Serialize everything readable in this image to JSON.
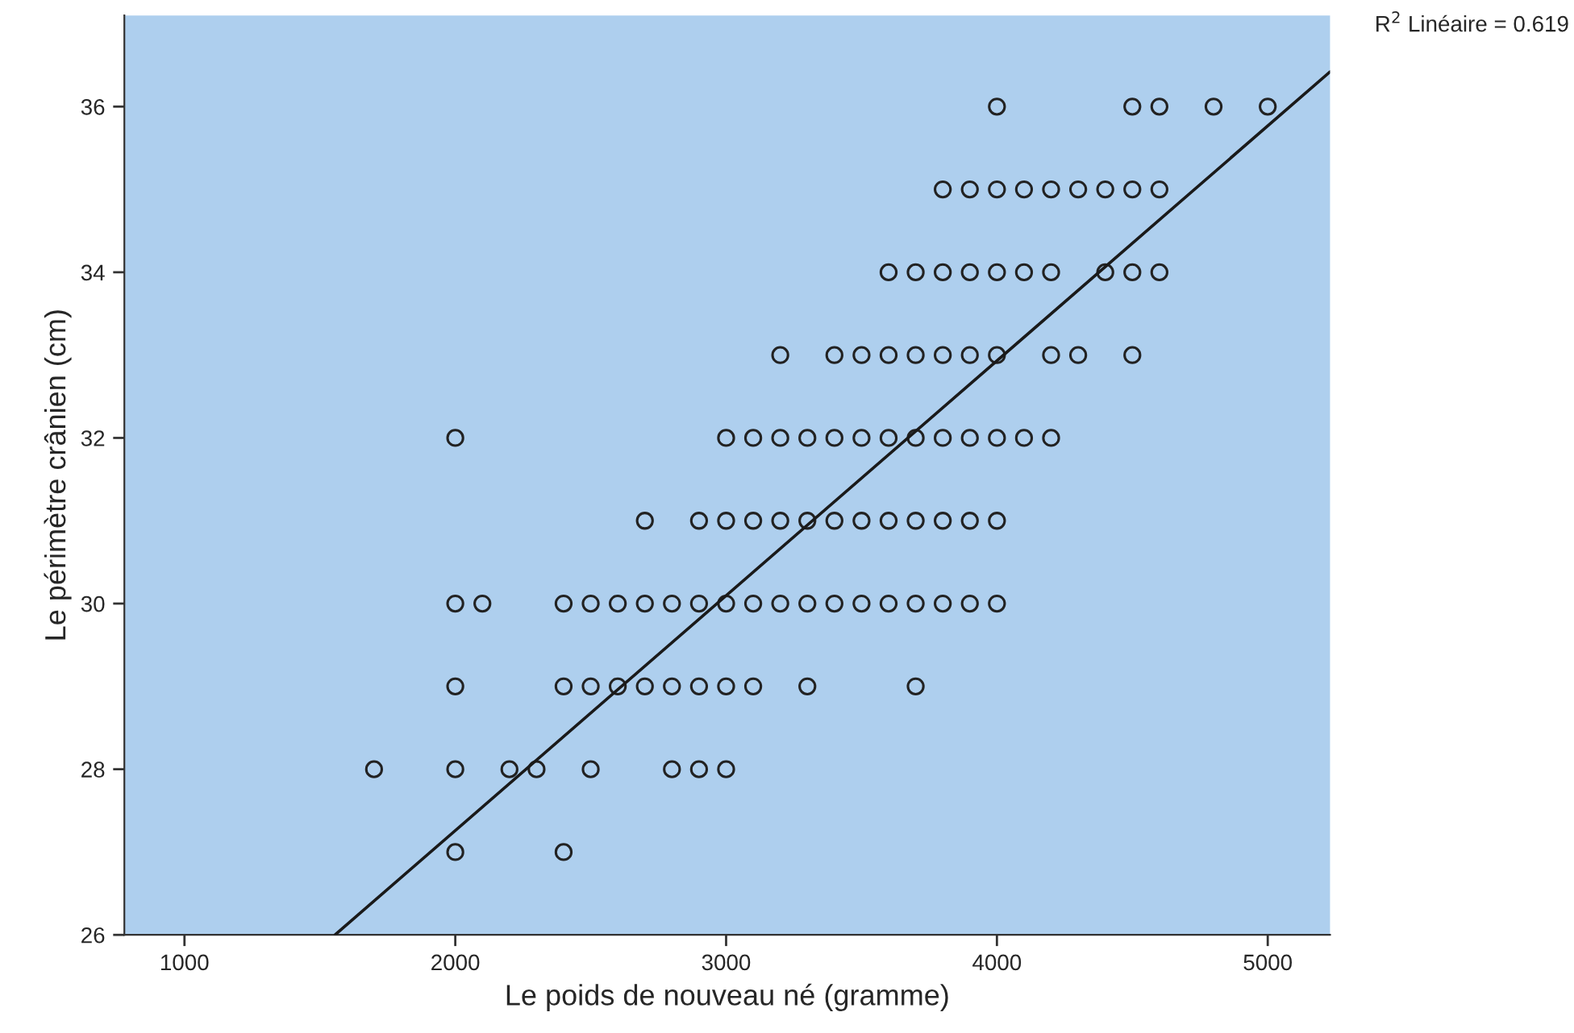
{
  "chart_data": {
    "type": "scatter",
    "xlabel": "Le poids de nouveau né (gramme)",
    "ylabel": "Le périmètre crânien (cm)",
    "xlim": [
      778,
      5230
    ],
    "ylim": [
      26,
      37.1
    ],
    "xticks": [
      1000,
      2000,
      3000,
      4000,
      5000
    ],
    "yticks": [
      26,
      28,
      30,
      32,
      34,
      36
    ],
    "grid": false,
    "legend": false,
    "marker": "circle",
    "annotations": [
      "R$^{2}$ Linéaire = 0.619"
    ],
    "series": [
      {
        "color": "#222222",
        "x": [
          4000,
          4500,
          4600,
          4800,
          5000,
          3800,
          3900,
          4000,
          4100,
          4200,
          4300,
          4400,
          4500,
          4600,
          3600,
          3700,
          3800,
          3900,
          4000,
          4100,
          4200,
          4400,
          4500,
          4600,
          3200,
          3400,
          3500,
          3600,
          3700,
          3800,
          3900,
          4000,
          4200,
          4300,
          4500,
          2000,
          3000,
          3100,
          3200,
          3300,
          3400,
          3500,
          3600,
          3700,
          3800,
          3900,
          4000,
          4100,
          4200,
          2700,
          2900,
          3000,
          3100,
          3200,
          3300,
          3400,
          3500,
          3600,
          3700,
          3800,
          3900,
          4000,
          2000,
          2100,
          2400,
          2500,
          2600,
          2700,
          2800,
          2900,
          3000,
          3100,
          3200,
          3300,
          3400,
          3500,
          3600,
          3700,
          3800,
          3900,
          4000,
          2000,
          2400,
          2500,
          2600,
          2700,
          2800,
          2900,
          3000,
          3100,
          3300,
          3700,
          1700,
          2000,
          2200,
          2300,
          2500,
          2800,
          2900,
          3000,
          2000,
          2400
        ],
        "values": [
          36,
          36,
          36,
          36,
          36,
          35,
          35,
          35,
          35,
          35,
          35,
          35,
          35,
          35,
          34,
          34,
          34,
          34,
          34,
          34,
          34,
          34,
          34,
          34,
          33,
          33,
          33,
          33,
          33,
          33,
          33,
          33,
          33,
          33,
          33,
          32,
          32,
          32,
          32,
          32,
          32,
          32,
          32,
          32,
          32,
          32,
          32,
          32,
          32,
          31,
          31,
          31,
          31,
          31,
          31,
          31,
          31,
          31,
          31,
          31,
          31,
          31,
          30,
          30,
          30,
          30,
          30,
          30,
          30,
          30,
          30,
          30,
          30,
          30,
          30,
          30,
          30,
          30,
          30,
          30,
          30,
          29,
          29,
          29,
          29,
          29,
          29,
          29,
          29,
          29,
          29,
          29,
          28,
          28,
          28,
          28,
          28,
          28,
          28,
          28,
          27,
          27
        ]
      },
      {
        "type": "line",
        "color": "#1a1a1a",
        "line_style": "solid",
        "marker": "none",
        "x": [
          1556,
          5230
        ],
        "values": [
          26,
          36.42
        ]
      }
    ]
  }
}
